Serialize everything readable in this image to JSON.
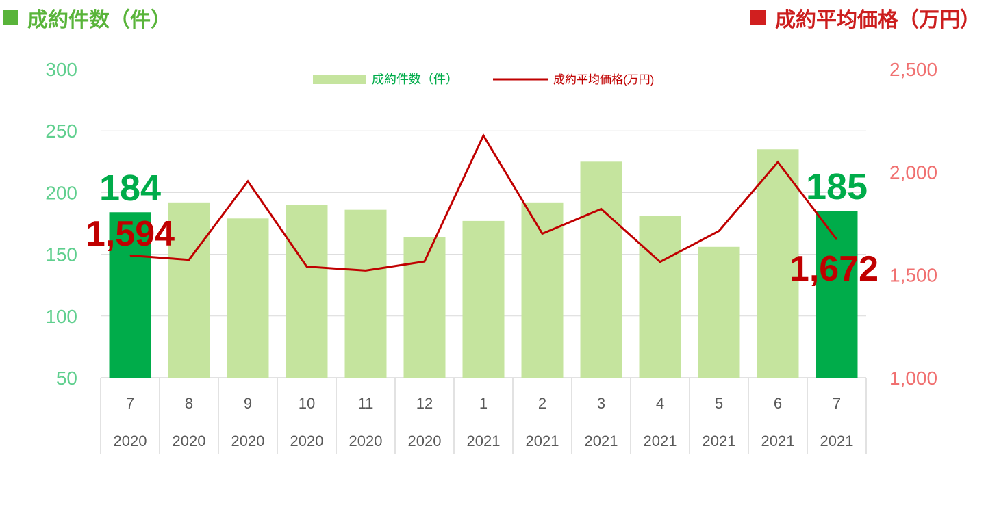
{
  "header": {
    "left_title": "成約件数（件）",
    "right_title": "成約平均価格（万円）"
  },
  "colors": {
    "bar_light": "#c5e49e",
    "bar_highlight": "#00ac4a",
    "line": "#c00000",
    "left_axis_text": "#5fcf8e",
    "right_axis_text": "#f07070",
    "grid": "#d9d9d9",
    "category_text": "#595959"
  },
  "chart_data": {
    "type": "bar",
    "categories": [
      {
        "month": "7",
        "year": "2020"
      },
      {
        "month": "8",
        "year": "2020"
      },
      {
        "month": "9",
        "year": "2020"
      },
      {
        "month": "10",
        "year": "2020"
      },
      {
        "month": "11",
        "year": "2020"
      },
      {
        "month": "12",
        "year": "2020"
      },
      {
        "month": "1",
        "year": "2021"
      },
      {
        "month": "2",
        "year": "2021"
      },
      {
        "month": "3",
        "year": "2021"
      },
      {
        "month": "4",
        "year": "2021"
      },
      {
        "month": "5",
        "year": "2021"
      },
      {
        "month": "6",
        "year": "2021"
      },
      {
        "month": "7",
        "year": "2021"
      }
    ],
    "series": [
      {
        "name": "成約件数（件）",
        "type": "bar",
        "axis": "left",
        "values": [
          184,
          192,
          179,
          190,
          186,
          164,
          177,
          192,
          225,
          181,
          156,
          235,
          185
        ],
        "highlight_indices": [
          0,
          12
        ]
      },
      {
        "name": "成約平均価格(万円)",
        "type": "line",
        "axis": "right",
        "values": [
          1594,
          1573,
          1955,
          1540,
          1521,
          1565,
          2177,
          1700,
          1820,
          1563,
          1713,
          2048,
          1672
        ]
      }
    ],
    "left_axis": {
      "min": 50,
      "max": 300,
      "ticks": [
        "300",
        "250",
        "200",
        "150",
        "100",
        "50"
      ]
    },
    "right_axis": {
      "min": 1000,
      "max": 2500,
      "ticks": [
        "2,500",
        "2,000",
        "1,500",
        "1,000"
      ]
    },
    "annotations": {
      "first_count": "184",
      "first_price": "1,594",
      "last_count": "185",
      "last_price": "1,672"
    },
    "grid": true,
    "legend_position": "top-center"
  }
}
